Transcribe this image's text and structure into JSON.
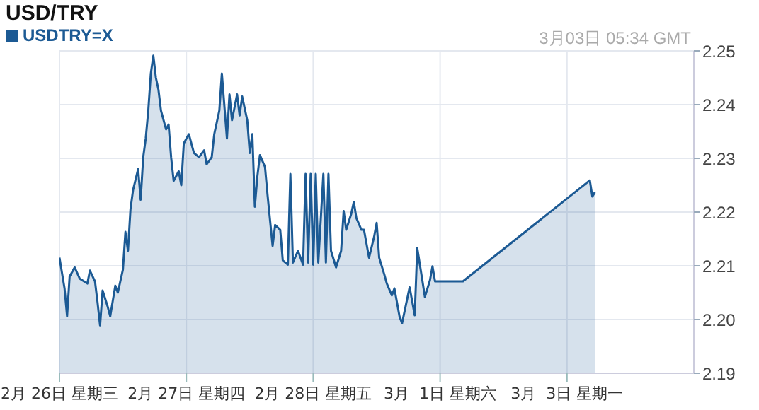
{
  "chart_data": {
    "type": "area",
    "title": "USD/TRY",
    "annotations": [
      "3月03日 05:34 GMT"
    ],
    "legend": "top left",
    "grid": true,
    "categories": [
      "2月 26日 星期三",
      null,
      null,
      null,
      null,
      null,
      null,
      null,
      null,
      null,
      null,
      null,
      null,
      null,
      null,
      null,
      null,
      null,
      null,
      null,
      null,
      null,
      null,
      null,
      null,
      null,
      null,
      null,
      null,
      null,
      null,
      null,
      null,
      null,
      null,
      null,
      null,
      null,
      null,
      null,
      null,
      null,
      null,
      null,
      null,
      null,
      null,
      null,
      null,
      null,
      "2月 27日 星期四",
      null,
      null,
      null,
      null,
      null,
      null,
      null,
      null,
      null,
      null,
      null,
      null,
      null,
      null,
      null,
      null,
      null,
      null,
      null,
      null,
      null,
      null,
      null,
      null,
      null,
      null,
      null,
      null,
      null,
      null,
      null,
      null,
      null,
      null,
      null,
      null,
      null,
      null,
      null,
      null,
      null,
      null,
      null,
      null,
      null,
      null,
      null,
      null,
      null,
      "2月 28日 星期五",
      null,
      null,
      null,
      null,
      null,
      null,
      null,
      null,
      null,
      null,
      null,
      null,
      null,
      null,
      null,
      null,
      null,
      null,
      null,
      null,
      null,
      null,
      null,
      null,
      null,
      null,
      null,
      null,
      null,
      null,
      null,
      null,
      null,
      null,
      null,
      null,
      null,
      null,
      null,
      null,
      null,
      null,
      null,
      null,
      null,
      null,
      null,
      null,
      null,
      "3月  1日 星期六",
      null,
      null,
      null,
      null,
      null,
      null,
      null,
      null,
      null,
      null,
      null,
      null,
      null,
      null,
      null,
      null,
      null,
      null,
      null,
      null,
      null,
      null,
      null,
      null,
      null,
      null,
      null,
      null,
      null,
      null,
      null,
      null,
      null,
      null,
      null,
      null,
      null,
      null,
      null,
      null,
      null,
      null,
      null,
      null,
      null,
      null,
      null,
      null,
      null,
      "3月  3日 星期一",
      null,
      null,
      null,
      null,
      null,
      null,
      null,
      null,
      null,
      null,
      null,
      null,
      null,
      null,
      null,
      null,
      null,
      null,
      null,
      null,
      null,
      null,
      null,
      null,
      null,
      null,
      null,
      null,
      null,
      null,
      null,
      null,
      null,
      null,
      null,
      null,
      null,
      null,
      null,
      null,
      null,
      null,
      null,
      null,
      null,
      null,
      null,
      null,
      null
    ],
    "ylim": [
      2.19,
      2.25
    ],
    "yticks": [
      2.19,
      {
        "value": 2.2,
        "label": "2.20"
      },
      2.21,
      2.22,
      2.23,
      2.24,
      2.25
    ],
    "series": [
      {
        "name": "USDTRY=X",
        "color": "#1c5a94",
        "values": [
          2.2115,
          null,
          2.2058,
          2.2006,
          2.208,
          null,
          2.2097,
          null,
          2.2076,
          null,
          null,
          2.2067,
          2.2091,
          null,
          2.2071,
          2.2032,
          2.1989,
          2.2054,
          null,
          2.2024,
          2.2006,
          null,
          2.2063,
          2.205,
          null,
          2.2093,
          2.2163,
          2.2128,
          2.2206,
          2.2241,
          null,
          2.228,
          2.2223,
          2.2302,
          2.2337,
          2.2389,
          2.2458,
          2.2491,
          2.245,
          2.2428,
          2.2389,
          null,
          2.2354,
          2.2363,
          2.2302,
          2.2258,
          null,
          2.2276,
          2.225,
          2.2328,
          null,
          2.2345,
          null,
          2.231,
          null,
          2.2302,
          null,
          2.2315,
          2.2289,
          null,
          2.2302,
          2.2345,
          null,
          2.2389,
          2.2458,
          2.2397,
          2.2337,
          2.2419,
          2.2371,
          null,
          2.2419,
          2.238,
          2.2415,
          null,
          2.2371,
          2.231,
          2.2345,
          2.221,
          2.2267,
          2.2306,
          null,
          2.2284,
          2.2232,
          2.2184,
          2.2137,
          2.2176,
          null,
          2.2167,
          2.211,
          null,
          2.2102,
          2.2271,
          2.2106,
          null,
          2.2128,
          null,
          2.2102,
          2.2271,
          2.2106,
          2.2271,
          2.2102,
          2.2271,
          2.2106,
          null,
          2.2271,
          2.2106,
          2.2271,
          2.2128,
          null,
          2.2097,
          null,
          2.2128,
          2.2202,
          2.2167,
          null,
          2.2197,
          2.2219,
          2.2189,
          null,
          2.2167,
          2.2167,
          null,
          2.2115,
          null,
          2.2154,
          2.218,
          2.2115,
          null,
          2.2084,
          2.2067,
          null,
          2.2045,
          2.2058,
          null,
          2.2006,
          2.1993,
          null,
          null,
          2.206,
          null,
          2.2008,
          2.2133,
          null,
          2.2073,
          2.2042,
          null,
          2.2073,
          2.2099,
          2.2071,
          null,
          null,
          null,
          null,
          null,
          null,
          null,
          null,
          null,
          null,
          2.2071,
          null,
          null,
          null,
          null,
          null,
          null,
          null,
          null,
          null,
          null,
          null,
          null,
          null,
          null,
          null,
          null,
          null,
          null,
          null,
          null,
          null,
          null,
          null,
          null,
          null,
          null,
          null,
          null,
          null,
          null,
          null,
          null,
          null,
          null,
          null,
          null,
          null,
          null,
          null,
          null,
          null,
          null,
          null,
          null,
          null,
          null,
          null,
          null,
          null,
          2.2259,
          2.2229,
          2.2237,
          null,
          null,
          null,
          null,
          null,
          null,
          null,
          null,
          null,
          null,
          null,
          null,
          null,
          null,
          null,
          null,
          null,
          null,
          null,
          null,
          null,
          null,
          null,
          null,
          null,
          null,
          null,
          null,
          null,
          null,
          null,
          null,
          null,
          null,
          null,
          null,
          null,
          null
        ]
      }
    ]
  }
}
